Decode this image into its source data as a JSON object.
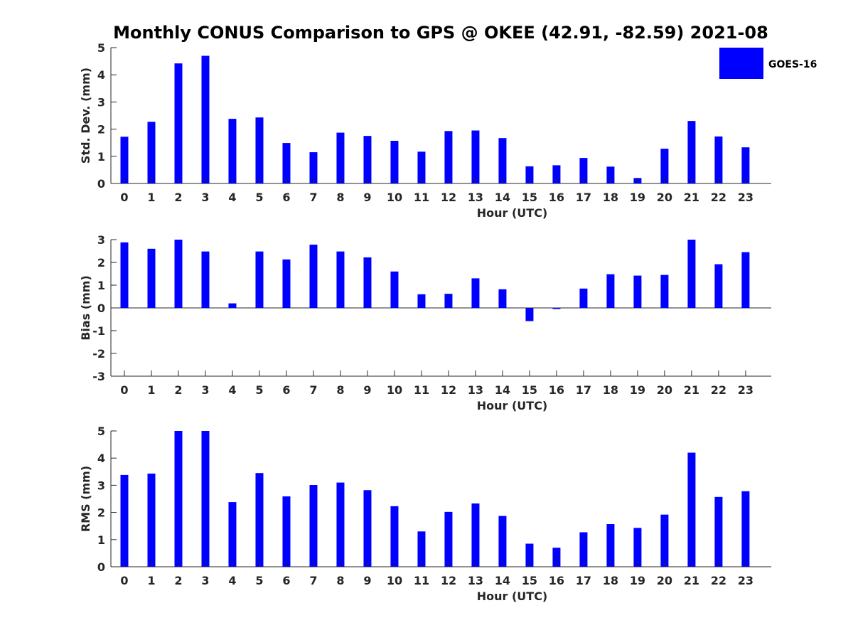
{
  "chart_data": {
    "title": "Monthly CONUS Comparison to GPS @ OKEE (42.91, -82.59) 2021-08",
    "color": "#0000ff",
    "legend": {
      "label": "GOES-16",
      "placement": "top-right"
    },
    "panels": [
      {
        "type": "bar",
        "xlabel": "Hour (UTC)",
        "ylabel": "Std. Dev. (mm)",
        "ylim": [
          0,
          5
        ],
        "yticks": [
          "0",
          "1",
          "2",
          "3",
          "4",
          "5"
        ],
        "grid": false,
        "categories": [
          "0",
          "1",
          "2",
          "3",
          "4",
          "5",
          "6",
          "7",
          "8",
          "9",
          "10",
          "11",
          "12",
          "13",
          "14",
          "15",
          "16",
          "17",
          "18",
          "19",
          "20",
          "21",
          "22",
          "23"
        ],
        "series": [
          {
            "name": "GOES-16",
            "values": [
              1.72,
              2.27,
              4.42,
              4.7,
              2.38,
              2.43,
              1.49,
              1.15,
              1.87,
              1.75,
              1.57,
              1.17,
              1.93,
              1.95,
              1.67,
              0.63,
              0.67,
              0.94,
              0.62,
              0.2,
              1.28,
              2.3,
              1.73,
              1.33
            ]
          }
        ]
      },
      {
        "type": "bar",
        "xlabel": "Hour (UTC)",
        "ylabel": "Bias (mm)",
        "ylim": [
          -3,
          3
        ],
        "yticks": [
          "-3",
          "-2",
          "-1",
          "0",
          "1",
          "2",
          "3"
        ],
        "grid": false,
        "categories": [
          "0",
          "1",
          "2",
          "3",
          "4",
          "5",
          "6",
          "7",
          "8",
          "9",
          "10",
          "11",
          "12",
          "13",
          "14",
          "15",
          "16",
          "17",
          "18",
          "19",
          "20",
          "21",
          "22",
          "23"
        ],
        "series": [
          {
            "name": "GOES-16",
            "values": [
              2.88,
              2.6,
              3.0,
              2.48,
              0.2,
              2.48,
              2.13,
              2.78,
              2.48,
              2.22,
              1.6,
              0.6,
              0.62,
              1.3,
              0.82,
              -0.58,
              -0.05,
              0.85,
              1.48,
              1.42,
              1.45,
              3.0,
              1.92,
              2.45
            ]
          }
        ]
      },
      {
        "type": "bar",
        "xlabel": "Hour (UTC)",
        "ylabel": "RMS (mm)",
        "ylim": [
          0,
          5
        ],
        "yticks": [
          "0",
          "1",
          "2",
          "3",
          "4",
          "5"
        ],
        "grid": false,
        "categories": [
          "0",
          "1",
          "2",
          "3",
          "4",
          "5",
          "6",
          "7",
          "8",
          "9",
          "10",
          "11",
          "12",
          "13",
          "14",
          "15",
          "16",
          "17",
          "18",
          "19",
          "20",
          "21",
          "22",
          "23"
        ],
        "series": [
          {
            "name": "GOES-16",
            "values": [
              3.38,
              3.43,
              5.0,
              5.0,
              2.38,
              3.45,
              2.59,
              3.01,
              3.1,
              2.82,
              2.23,
              1.3,
              2.02,
              2.33,
              1.87,
              0.85,
              0.7,
              1.27,
              1.57,
              1.43,
              1.92,
              4.2,
              2.57,
              2.78
            ]
          }
        ]
      }
    ]
  }
}
